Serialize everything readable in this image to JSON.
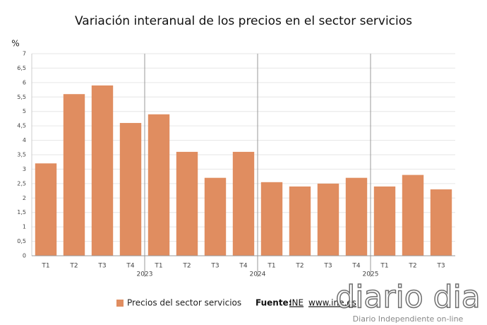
{
  "chart_data": {
    "type": "bar",
    "title": "Variación interanual de los precios en el sector servicios",
    "y_unit": "%",
    "categories": [
      "T1",
      "T2",
      "T3",
      "T4",
      "T1",
      "T2",
      "T3",
      "T4",
      "T1",
      "T2",
      "T3",
      "T4",
      "T1",
      "T2",
      "T3"
    ],
    "groups": [
      null,
      null,
      null,
      null,
      "2023",
      null,
      null,
      null,
      "2024",
      null,
      null,
      null,
      "2025",
      null,
      null
    ],
    "series": [
      {
        "name": "Precios del sector servicios",
        "color": "#e08d60",
        "values": [
          3.2,
          5.6,
          5.9,
          4.6,
          4.9,
          3.6,
          2.7,
          3.6,
          2.55,
          2.4,
          2.5,
          2.7,
          2.4,
          2.8,
          2.3
        ]
      }
    ],
    "ylim": [
      0,
      7
    ],
    "yticks": [
      0,
      {
        "value": 0.5,
        "label": "0,5"
      },
      1,
      {
        "value": 1.5,
        "label": "1,5"
      },
      2,
      {
        "value": 2.5,
        "label": "2,5"
      },
      3,
      {
        "value": 3.5,
        "label": "3,5"
      },
      4,
      {
        "value": 4.5,
        "label": "4,5"
      },
      5,
      {
        "value": 5.5,
        "label": "5,5"
      },
      6,
      {
        "value": 6.5,
        "label": "6,5"
      },
      7
    ],
    "grid": true,
    "source": {
      "label": "Fuente:",
      "links": [
        "INE",
        "www.ine.es"
      ]
    }
  },
  "watermark": {
    "logo": "diario dia",
    "tagline": "Diario Independiente on-line"
  }
}
